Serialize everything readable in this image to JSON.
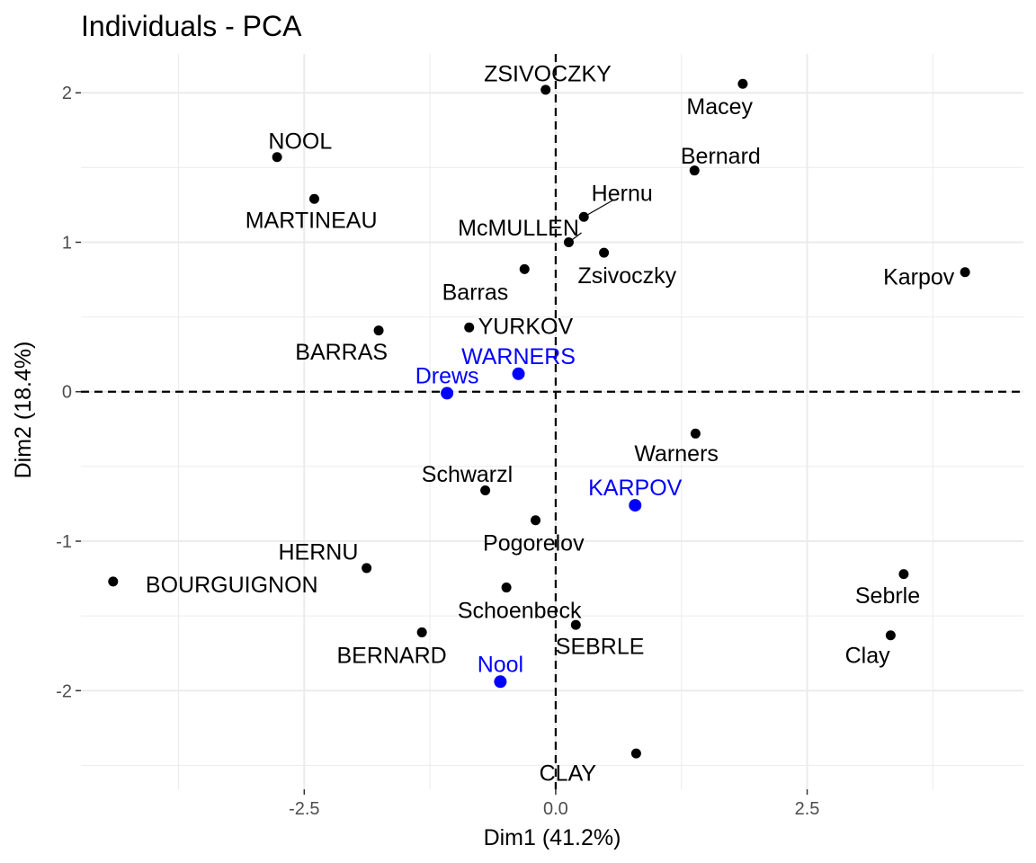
{
  "chart_data": {
    "type": "scatter",
    "title": "Individuals - PCA",
    "xlabel": "Dim1 (41.2%)",
    "ylabel": "Dim2 (18.4%)",
    "xlim": [
      -4.72,
      4.65
    ],
    "ylim": [
      -2.66,
      2.26
    ],
    "xticks": [
      -2.5,
      0,
      2.5
    ],
    "xtick_labels": [
      "-2.5",
      "0.0",
      "2.5"
    ],
    "yticks": [
      -2,
      -1,
      0,
      1,
      2
    ],
    "ytick_labels": [
      "-2",
      "-1",
      "0",
      "1",
      "2"
    ],
    "grid": true,
    "reference_lines": {
      "x": 0,
      "y": 0,
      "style": "dashed"
    },
    "colors": {
      "active": "#000000",
      "supplementary": "#0000ff",
      "grid": "#ebebeb"
    },
    "series": [
      {
        "group": "active",
        "points": [
          {
            "label": "ZSIVOCZKY",
            "x": -0.1,
            "y": 2.02,
            "lx": -0.08,
            "ly": 2.13,
            "anchor": "middle"
          },
          {
            "label": "Macey",
            "x": 1.86,
            "y": 2.06,
            "lx": 1.63,
            "ly": 1.91,
            "anchor": "middle"
          },
          {
            "label": "NOOL",
            "x": -2.77,
            "y": 1.57,
            "lx": -2.54,
            "ly": 1.68,
            "anchor": "middle"
          },
          {
            "label": "Bernard",
            "x": 1.38,
            "y": 1.48,
            "lx": 1.64,
            "ly": 1.58,
            "anchor": "middle"
          },
          {
            "label": "MARTINEAU",
            "x": -2.4,
            "y": 1.29,
            "lx": -2.43,
            "ly": 1.15,
            "anchor": "middle"
          },
          {
            "label": "Hernu",
            "x": 0.28,
            "y": 1.17,
            "lx": 0.66,
            "ly": 1.33,
            "anchor": "middle",
            "leader": true
          },
          {
            "label": "McMULLEN",
            "x": 0.13,
            "y": 1.0,
            "lx": -0.37,
            "ly": 1.1,
            "anchor": "middle",
            "leader": true
          },
          {
            "label": "Zsivoczky",
            "x": 0.48,
            "y": 0.93,
            "lx": 0.71,
            "ly": 0.78,
            "anchor": "middle"
          },
          {
            "label": "Karpov",
            "x": 4.07,
            "y": 0.8,
            "lx": 3.61,
            "ly": 0.77,
            "anchor": "middle"
          },
          {
            "label": "Barras",
            "x": -0.31,
            "y": 0.82,
            "lx": -0.8,
            "ly": 0.67,
            "anchor": "middle"
          },
          {
            "label": "BARRAS",
            "x": -1.76,
            "y": 0.41,
            "lx": -2.13,
            "ly": 0.27,
            "anchor": "middle"
          },
          {
            "label": "YURKOV",
            "x": -0.86,
            "y": 0.43,
            "lx": -0.3,
            "ly": 0.44,
            "anchor": "middle"
          },
          {
            "label": "Warners",
            "x": 1.39,
            "y": -0.28,
            "lx": 1.2,
            "ly": -0.41,
            "anchor": "middle"
          },
          {
            "label": "Schwarzl",
            "x": -0.7,
            "y": -0.66,
            "lx": -0.88,
            "ly": -0.55,
            "anchor": "middle"
          },
          {
            "label": "Pogorelov",
            "x": -0.2,
            "y": -0.86,
            "lx": -0.22,
            "ly": -1.01,
            "anchor": "middle"
          },
          {
            "label": "HERNU",
            "x": -1.88,
            "y": -1.18,
            "lx": -2.36,
            "ly": -1.07,
            "anchor": "middle"
          },
          {
            "label": "BOURGUIGNON",
            "x": -4.4,
            "y": -1.27,
            "lx": -3.22,
            "ly": -1.29,
            "anchor": "middle"
          },
          {
            "label": "Sebrle",
            "x": 3.46,
            "y": -1.22,
            "lx": 3.3,
            "ly": -1.36,
            "anchor": "middle"
          },
          {
            "label": "Schoenbeck",
            "x": -0.49,
            "y": -1.31,
            "lx": -0.36,
            "ly": -1.46,
            "anchor": "middle"
          },
          {
            "label": "Clay",
            "x": 3.33,
            "y": -1.63,
            "lx": 3.1,
            "ly": -1.76,
            "anchor": "middle"
          },
          {
            "label": "SEBRLE",
            "x": 0.2,
            "y": -1.56,
            "lx": 0.44,
            "ly": -1.7,
            "anchor": "middle"
          },
          {
            "label": "BERNARD",
            "x": -1.33,
            "y": -1.61,
            "lx": -1.63,
            "ly": -1.76,
            "anchor": "middle"
          },
          {
            "label": "CLAY",
            "x": 0.8,
            "y": -2.42,
            "lx": 0.12,
            "ly": -2.55,
            "anchor": "middle"
          }
        ]
      },
      {
        "group": "supplementary",
        "points": [
          {
            "label": "WARNERS",
            "x": -0.37,
            "y": 0.12,
            "lx": -0.37,
            "ly": 0.24,
            "anchor": "middle"
          },
          {
            "label": "Drews",
            "x": -1.08,
            "y": -0.01,
            "lx": -1.08,
            "ly": 0.11,
            "anchor": "middle"
          },
          {
            "label": "KARPOV",
            "x": 0.79,
            "y": -0.76,
            "lx": 0.79,
            "ly": -0.64,
            "anchor": "middle"
          },
          {
            "label": "Nool",
            "x": -0.55,
            "y": -1.94,
            "lx": -0.55,
            "ly": -1.82,
            "anchor": "middle"
          }
        ]
      }
    ]
  }
}
